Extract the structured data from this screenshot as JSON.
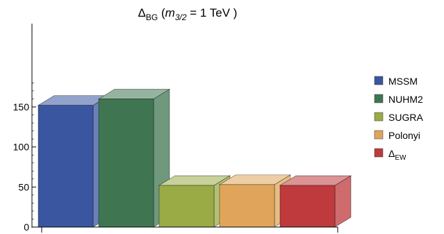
{
  "chart_data": {
    "type": "bar",
    "title": {
      "main": "Δ",
      "main_sub": "BG",
      "paren_open": " (",
      "var": "m",
      "var_sub": "3/2",
      "rest": " = 1 TeV )"
    },
    "categories": [
      "MSSM",
      "NUHM2",
      "SUGRA",
      "Polonyi",
      "Δ_EW"
    ],
    "values": [
      152,
      160,
      52,
      53,
      52
    ],
    "colors": [
      "#3a56a0",
      "#3f7651",
      "#9aab45",
      "#e0a55a",
      "#be3a3c"
    ],
    "legend": [
      {
        "label": "MSSM",
        "sub": ""
      },
      {
        "label": "NUHM2",
        "sub": ""
      },
      {
        "label": "SUGRA",
        "sub": ""
      },
      {
        "label": "Polonyi",
        "sub": ""
      },
      {
        "label": "Δ",
        "sub": "EW"
      }
    ],
    "legend_position": "right",
    "ylim": [
      0,
      190
    ],
    "yticks": [
      0,
      50,
      100,
      150
    ],
    "minor_step": 10,
    "style": "3d-bar",
    "grid": false
  }
}
